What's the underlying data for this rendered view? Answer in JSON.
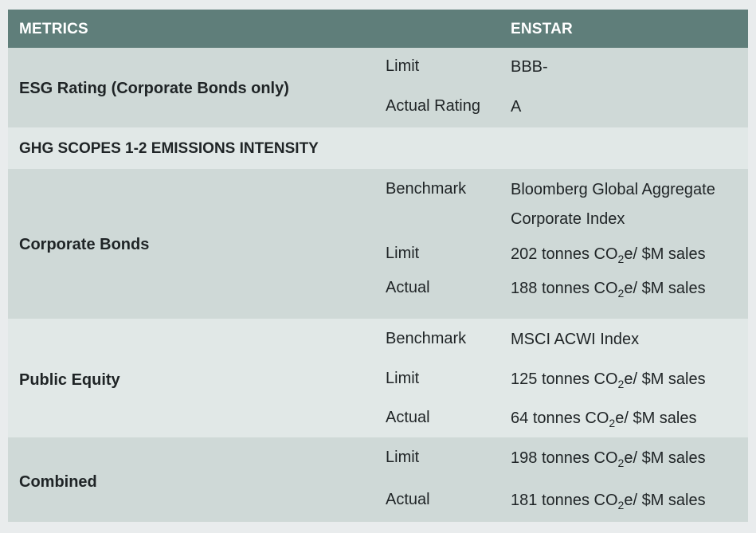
{
  "header": {
    "metrics_label": "METRICS",
    "fund_label": "ENSTAR"
  },
  "esg": {
    "title": "ESG Rating (Corporate Bonds only)",
    "limit_label": "Limit",
    "limit_value": "BBB-",
    "actual_label": "Actual Rating",
    "actual_value": "A"
  },
  "ghg": {
    "title": "GHG SCOPES 1-2 EMISSIONS INTENSITY"
  },
  "corporate_bonds": {
    "title": "Corporate Bonds",
    "benchmark_label": "Benchmark",
    "benchmark_line1": "Bloomberg Global Aggregate",
    "benchmark_line2": "Corporate Index",
    "limit_label": "Limit",
    "limit_num": "202",
    "actual_label": "Actual",
    "actual_num": "188"
  },
  "public_equity": {
    "title": "Public Equity",
    "benchmark_label": "Benchmark",
    "benchmark_value": "MSCI ACWI Index",
    "limit_label": "Limit",
    "limit_num": "125",
    "actual_label": "Actual",
    "actual_num": "64"
  },
  "combined": {
    "title": "Combined",
    "limit_label": "Limit",
    "limit_num": "198",
    "actual_label": "Actual",
    "actual_num": "181"
  },
  "unit": {
    "tonnes": "tonnes CO",
    "sub": "2",
    "tail": "e/ $M sales"
  }
}
